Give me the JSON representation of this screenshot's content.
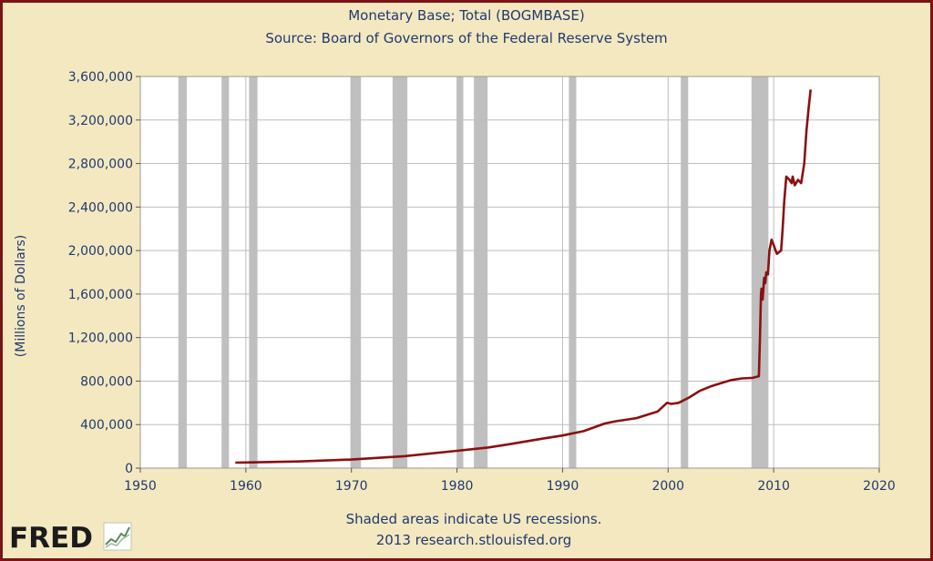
{
  "chart_data": {
    "type": "line",
    "title": "Monetary Base; Total (BOGMBASE)",
    "subtitle": "Source: Board of Governors of the Federal Reserve System",
    "ylabel": "(Millions of Dollars)",
    "xlabel": "",
    "xlim": [
      1950,
      2020
    ],
    "ylim": [
      0,
      3600000
    ],
    "grid": true,
    "x_ticks": [
      1950,
      1960,
      1970,
      1980,
      1990,
      2000,
      2010,
      2020
    ],
    "y_ticks": [
      0,
      400000,
      800000,
      1200000,
      1600000,
      2000000,
      2400000,
      2800000,
      3200000,
      3600000
    ],
    "x_tick_labels": [
      "1950",
      "1960",
      "1970",
      "1980",
      "1990",
      "2000",
      "2010",
      "2020"
    ],
    "y_tick_labels": [
      "0",
      "400,000",
      "800,000",
      "1,200,000",
      "1,600,000",
      "2,000,000",
      "2,400,000",
      "2,800,000",
      "3,200,000",
      "3,600,000"
    ],
    "recessions": [
      [
        1953.6,
        1954.4
      ],
      [
        1957.7,
        1958.4
      ],
      [
        1960.3,
        1961.1
      ],
      [
        1969.9,
        1970.9
      ],
      [
        1973.9,
        1975.3
      ],
      [
        1980.0,
        1980.6
      ],
      [
        1981.6,
        1982.9
      ],
      [
        1990.6,
        1991.3
      ],
      [
        2001.2,
        2001.9
      ],
      [
        2007.9,
        2009.5
      ]
    ],
    "series": [
      {
        "color": "#8b1010",
        "x": [
          1959.0,
          1960,
          1965,
          1970,
          1975,
          1980,
          1983,
          1985,
          1988,
          1990,
          1992,
          1994,
          1995,
          1997,
          1999,
          1999.9,
          2000.3,
          2001,
          2002,
          2003,
          2004,
          2005,
          2006,
          2007,
          2008.0,
          2008.6,
          2008.7,
          2008.8,
          2008.85,
          2008.95,
          2009.1,
          2009.2,
          2009.3,
          2009.45,
          2009.6,
          2009.8,
          2010.0,
          2010.3,
          2010.7,
          2010.85,
          2011.0,
          2011.2,
          2011.5,
          2011.7,
          2011.8,
          2012.0,
          2012.3,
          2012.6,
          2012.9,
          2013.1,
          2013.3,
          2013.5
        ],
        "y": [
          50000,
          52000,
          61000,
          79000,
          110000,
          159000,
          190000,
          220000,
          270000,
          300000,
          340000,
          410000,
          430000,
          460000,
          520000,
          600000,
          590000,
          600000,
          650000,
          710000,
          750000,
          780000,
          810000,
          825000,
          830000,
          845000,
          1200000,
          1600000,
          1650000,
          1550000,
          1750000,
          1700000,
          1800000,
          1780000,
          2000000,
          2100000,
          2050000,
          1970000,
          2000000,
          2200000,
          2450000,
          2680000,
          2650000,
          2620000,
          2680000,
          2600000,
          2650000,
          2620000,
          2800000,
          3100000,
          3300000,
          3480000
        ]
      }
    ]
  },
  "footer": {
    "recession_note": "Shaded areas indicate US recessions.",
    "credit": "2013 research.stlouisfed.org"
  },
  "logo": {
    "text": "FRED"
  },
  "colors": {
    "series_line": "#8b1010",
    "recession_shade": "#bfbfbf",
    "frame_border": "#7a1416",
    "text": "#1f3a6e"
  }
}
